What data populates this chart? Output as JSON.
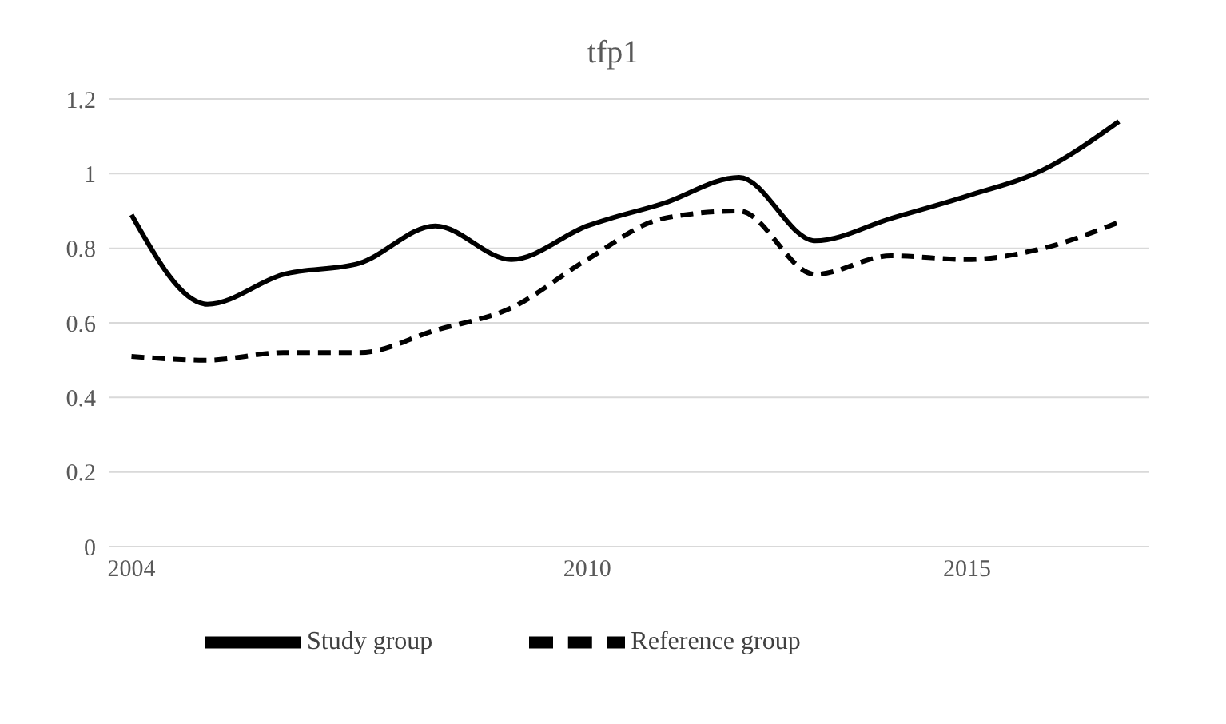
{
  "chart_data": {
    "type": "line",
    "title": "tfp1",
    "x": [
      2004,
      2005,
      2006,
      2007,
      2008,
      2009,
      2010,
      2011,
      2012,
      2013,
      2014,
      2015,
      2016,
      2017
    ],
    "series": [
      {
        "name": "Study group",
        "color": "#000000",
        "line_style": "solid",
        "values": [
          0.89,
          0.65,
          0.73,
          0.76,
          0.86,
          0.77,
          0.86,
          0.92,
          0.99,
          0.82,
          0.88,
          0.94,
          1.01,
          1.14
        ]
      },
      {
        "name": "Reference group",
        "color": "#000000",
        "line_style": "dashed",
        "values": [
          0.51,
          0.5,
          0.52,
          0.52,
          0.58,
          0.64,
          0.77,
          0.88,
          0.9,
          0.73,
          0.78,
          0.77,
          0.8,
          0.87
        ]
      }
    ],
    "xlim": [
      2003.7,
      2017.4
    ],
    "xticks": [
      2004,
      2010,
      2015
    ],
    "ylim": [
      0,
      1.2
    ],
    "yticks": [
      0,
      0.2,
      0.4,
      0.6,
      0.8,
      1,
      1.2
    ],
    "grid": "y",
    "legend": "bottom",
    "marker": "none"
  }
}
